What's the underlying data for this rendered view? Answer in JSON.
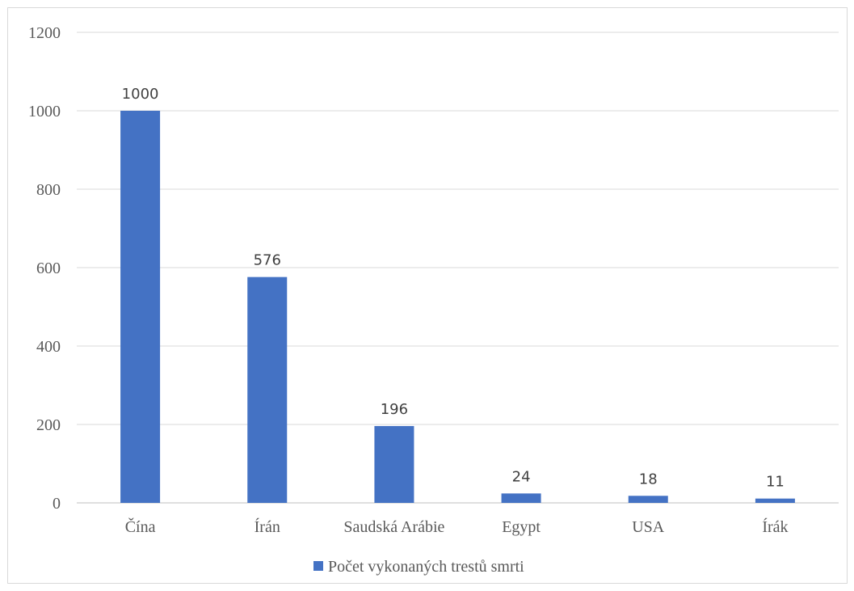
{
  "chart_data": {
    "type": "bar",
    "categories": [
      "Čína",
      "Írán",
      "Saudská Arábie",
      "Egypt",
      "USA",
      "Írák"
    ],
    "series": [
      {
        "name": "Počet vykonaných trestů smrti",
        "values": [
          1000,
          576,
          196,
          24,
          18,
          11
        ]
      }
    ],
    "data_labels": [
      "1000",
      "576",
      "196",
      "24",
      "18",
      "11"
    ],
    "y_ticks": [
      "0",
      "200",
      "400",
      "600",
      "800",
      "1000",
      "1200"
    ],
    "ylim": [
      0,
      1200
    ],
    "grid": true,
    "legend_position": "bottom",
    "colors": {
      "bar": "#4472c4",
      "grid": "#d9d9d9",
      "axis": "#bfbfbf"
    }
  }
}
